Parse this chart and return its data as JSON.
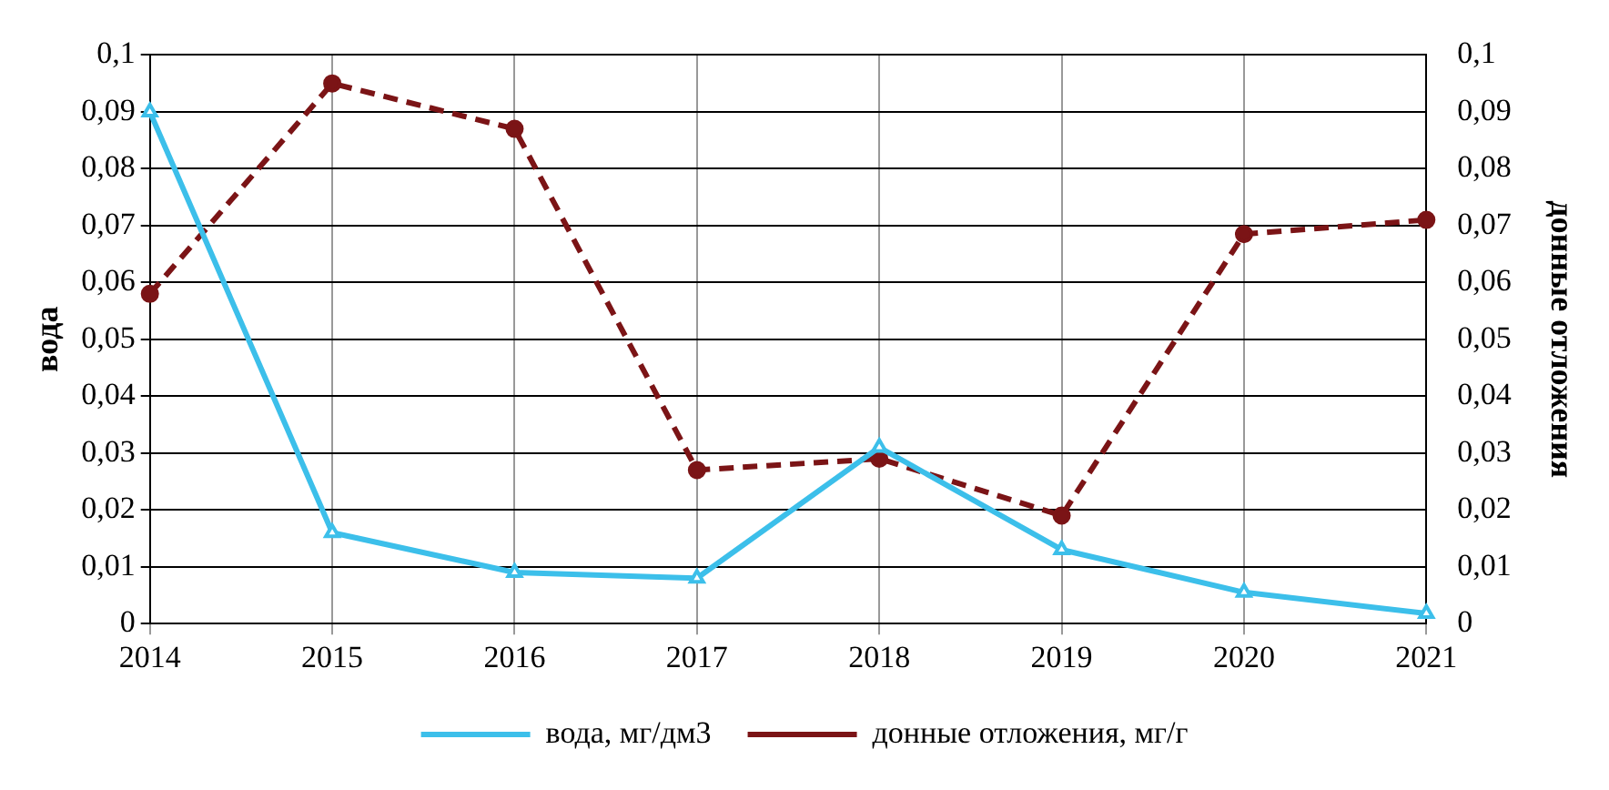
{
  "chart_data": {
    "type": "line",
    "categories": [
      "2014",
      "2015",
      "2016",
      "2017",
      "2018",
      "2019",
      "2020",
      "2021"
    ],
    "series": [
      {
        "name": "вода, мг/дм3",
        "color": "#3cbfea",
        "values": [
          0.09,
          0.016,
          0.009,
          0.008,
          0.031,
          0.013,
          0.0055,
          0.0018
        ],
        "marker": "triangle",
        "line_style": "solid"
      },
      {
        "name": "донные отложения, мг/г",
        "color": "#7b1416",
        "values": [
          0.058,
          0.095,
          0.087,
          0.027,
          0.029,
          0.019,
          0.0685,
          0.071
        ],
        "marker": "circle",
        "line_style": "dashed",
        "axis": "y2"
      }
    ],
    "ylabel": "вода",
    "y2label": "донные отложения",
    "ylim": [
      0,
      0.1
    ],
    "yticks": [
      0,
      {
        "value": 0.01,
        "label": "0,01"
      },
      {
        "value": 0.02,
        "label": "0,02"
      },
      {
        "value": 0.03,
        "label": "0,03"
      },
      {
        "value": 0.04,
        "label": "0,04"
      },
      {
        "value": 0.05,
        "label": "0,05"
      },
      {
        "value": 0.06,
        "label": "0,06"
      },
      {
        "value": 0.07,
        "label": "0,07"
      },
      {
        "value": 0.08,
        "label": "0,08"
      },
      {
        "value": 0.09,
        "label": "0,09"
      },
      {
        "value": 0.1,
        "label": "0,1"
      }
    ],
    "y2lim": [
      0,
      0.1
    ],
    "y2ticks": [
      0,
      {
        "value": 0.01,
        "label": "0,01"
      },
      {
        "value": 0.02,
        "label": "0,02"
      },
      {
        "value": 0.03,
        "label": "0,03"
      },
      {
        "value": 0.04,
        "label": "0,04"
      },
      {
        "value": 0.05,
        "label": "0,05"
      },
      {
        "value": 0.06,
        "label": "0,06"
      },
      {
        "value": 0.07,
        "label": "0,07"
      },
      {
        "value": 0.08,
        "label": "0,08"
      },
      {
        "value": 0.09,
        "label": "0,09"
      },
      {
        "value": 0.1,
        "label": "0,1"
      }
    ],
    "grid": true,
    "legend": "bottom"
  }
}
